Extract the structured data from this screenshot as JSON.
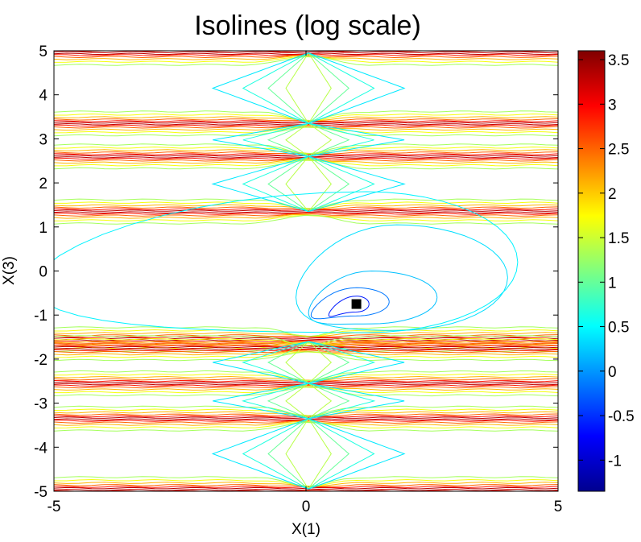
{
  "chart_data": {
    "type": "contour",
    "title": "Isolines (log scale)",
    "xlabel": "X(1)",
    "ylabel": "X(3)",
    "xlim": [
      -5,
      5
    ],
    "ylim": [
      -5,
      5
    ],
    "xticks": [
      "-5",
      "0",
      "5"
    ],
    "yticks": [
      "-5",
      "-4",
      "-3",
      "-2",
      "-1",
      "0",
      "1",
      "2",
      "3",
      "4",
      "5"
    ],
    "colorbar": {
      "colormap": "jet",
      "range": [
        -1.35,
        3.6
      ],
      "ticks": [
        "-1",
        "-0.5",
        "0",
        "0.5",
        "1",
        "1.5",
        "2",
        "2.5",
        "3",
        "3.5"
      ]
    },
    "marker": {
      "x": 1.0,
      "y": -0.75,
      "shape": "square",
      "color": "#000000"
    },
    "band_peaks_y": [
      4.95,
      3.35,
      2.6,
      1.35,
      -1.55,
      -1.75,
      -2.55,
      -3.35,
      -4.95
    ],
    "valley_lines_y": [
      3.35,
      2.6,
      1.35,
      -1.6,
      -2.55,
      -3.35
    ]
  }
}
